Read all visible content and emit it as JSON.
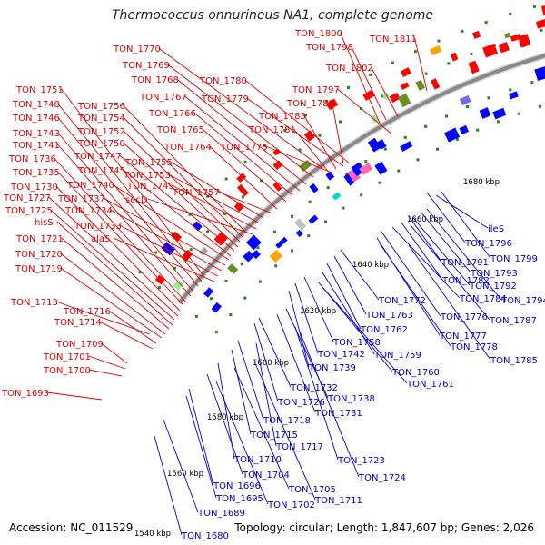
{
  "title": "Thermococcus onnurineus NA1, complete genome",
  "accession": "Accession: NC_011529",
  "topology": "Topology: circular; Length: 1,847,607 bp; Genes: 2,026",
  "colors": {
    "left_labels": "#e00000",
    "right_labels": "#0000cc",
    "backbone": "#888888",
    "ticks": "#1b8a1b"
  },
  "kbp_labels": [
    "1540 kbp",
    "1560 kbp",
    "1580 kbp",
    "1600 kbp",
    "1620 kbp",
    "1640 kbp",
    "1660 kbp",
    "1680 kbp"
  ],
  "left_labels": [
    "TON_1770",
    "TON_1769",
    "TON_1768",
    "TON_1767",
    "TON_1780",
    "TON_1779",
    "TON_1766",
    "TON_1765",
    "TON_1764",
    "TON_1775",
    "TON_1751",
    "TON_1748",
    "TON_1746",
    "TON_1743",
    "TON_1741",
    "TON_1736",
    "TON_1735",
    "TON_1730",
    "TON_1727",
    "TON_1725",
    "hisS",
    "TON_1721",
    "TON_1720",
    "TON_1719",
    "TON_1756",
    "TON_1754",
    "TON_1752",
    "TON_1750",
    "TON_1747",
    "TON_1745",
    "TON_1740",
    "TON_1737",
    "TON_1734",
    "TON_1733",
    "alaS",
    "TON_1755",
    "TON_1753",
    "TON_1749",
    "secD",
    "TON_1757",
    "TON_1713",
    "TON_1716",
    "TON_1714",
    "TON_1709",
    "TON_1701",
    "TON_1700",
    "TON_1693",
    "TON_1800",
    "TON_1798",
    "TON_1811",
    "TON_1802",
    "TON_1797",
    "TON_1788",
    "TON_1783",
    "TON_1781"
  ],
  "right_labels": [
    "ileS",
    "TON_1796",
    "TON_1799",
    "TON_1791",
    "TON_1793",
    "TON_1782",
    "TON_1792",
    "TON_1794",
    "TON_1784",
    "TON_1772",
    "TON_1763",
    "TON_1776",
    "TON_1787",
    "TON_1762",
    "TON_1777",
    "TON_1758",
    "TON_1778",
    "TON_1742",
    "TON_1759",
    "TON_1785",
    "TON_1739",
    "TON_1760",
    "TON_1761",
    "TON_1732",
    "TON_1738",
    "TON_1726",
    "TON_1731",
    "TON_1718",
    "TON_1715",
    "TON_1717",
    "TON_1723",
    "TON_1710",
    "TON_1724",
    "TON_1704",
    "TON_1705",
    "TON_1696",
    "TON_1711",
    "TON_1695",
    "TON_1702",
    "TON_1689",
    "TON_1680"
  ]
}
